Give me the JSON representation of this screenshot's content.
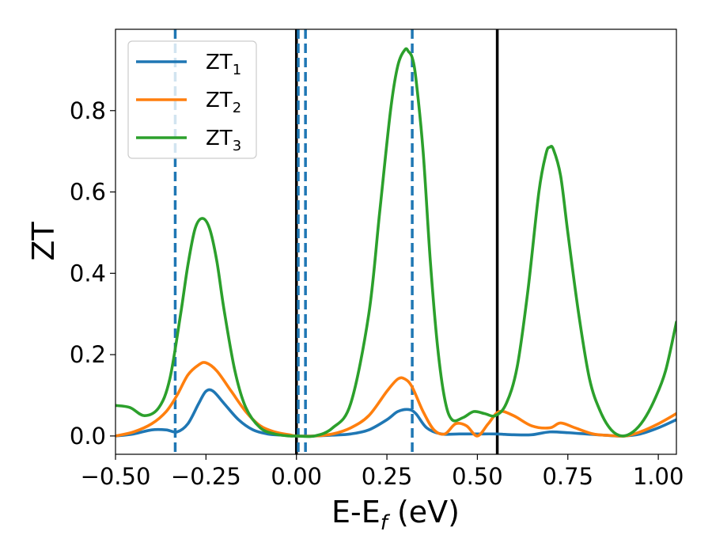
{
  "chart_data": {
    "type": "line",
    "xlabel": "E-E",
    "xlabel_sub": "f",
    "xlabel_unit": " (eV)",
    "ylabel": "ZT",
    "xlim": [
      -0.5,
      1.05
    ],
    "ylim": [
      -0.045,
      1.0
    ],
    "xticks": [
      -0.5,
      -0.25,
      0.0,
      0.25,
      0.5,
      0.75,
      1.0
    ],
    "xtick_labels": [
      "−0.50",
      "−0.25",
      "0.00",
      "0.25",
      "0.50",
      "0.75",
      "1.00"
    ],
    "yticks": [
      0.0,
      0.2,
      0.4,
      0.6,
      0.8
    ],
    "ytick_labels": [
      "0.0",
      "0.2",
      "0.4",
      "0.6",
      "0.8"
    ],
    "grid": false,
    "legend_position": "top-left",
    "vlines_solid": [
      0.0,
      0.555
    ],
    "vlines_dashed": [
      -0.335,
      0.005,
      0.025,
      0.32
    ],
    "vline_solid_color": "#000000",
    "vline_dashed_color": "#1f77b4",
    "series": [
      {
        "name": "ZT",
        "sub": "1",
        "color": "#1f77b4",
        "x": [
          -0.5,
          -0.45,
          -0.4,
          -0.36,
          -0.33,
          -0.3,
          -0.27,
          -0.25,
          -0.23,
          -0.2,
          -0.16,
          -0.12,
          -0.08,
          -0.04,
          0.0,
          0.05,
          0.1,
          0.15,
          0.2,
          0.25,
          0.28,
          0.31,
          0.33,
          0.36,
          0.4,
          0.45,
          0.5,
          0.55,
          0.6,
          0.65,
          0.7,
          0.75,
          0.8,
          0.85,
          0.9,
          0.95,
          1.0,
          1.05
        ],
        "y": [
          0.0,
          0.005,
          0.015,
          0.015,
          0.01,
          0.03,
          0.08,
          0.11,
          0.11,
          0.08,
          0.04,
          0.015,
          0.005,
          0.002,
          0.0,
          0.0,
          0.002,
          0.005,
          0.015,
          0.04,
          0.06,
          0.065,
          0.055,
          0.02,
          0.005,
          0.005,
          0.005,
          0.005,
          0.003,
          0.003,
          0.01,
          0.008,
          0.005,
          0.002,
          0.0,
          0.005,
          0.02,
          0.04
        ]
      },
      {
        "name": "ZT",
        "sub": "2",
        "color": "#ff7f0e",
        "x": [
          -0.5,
          -0.45,
          -0.4,
          -0.36,
          -0.33,
          -0.3,
          -0.27,
          -0.25,
          -0.22,
          -0.18,
          -0.14,
          -0.1,
          -0.06,
          -0.02,
          0.0,
          0.05,
          0.1,
          0.15,
          0.2,
          0.25,
          0.28,
          0.3,
          0.32,
          0.35,
          0.38,
          0.41,
          0.44,
          0.47,
          0.5,
          0.53,
          0.56,
          0.6,
          0.65,
          0.7,
          0.73,
          0.77,
          0.82,
          0.87,
          0.91,
          0.95,
          1.0,
          1.05
        ],
        "y": [
          0.0,
          0.01,
          0.03,
          0.06,
          0.1,
          0.15,
          0.175,
          0.18,
          0.16,
          0.11,
          0.06,
          0.025,
          0.01,
          0.003,
          0.0,
          0.0,
          0.005,
          0.02,
          0.05,
          0.11,
          0.14,
          0.14,
          0.12,
          0.06,
          0.015,
          0.005,
          0.03,
          0.025,
          0.0,
          0.03,
          0.06,
          0.05,
          0.025,
          0.02,
          0.032,
          0.02,
          0.005,
          0.001,
          0.0,
          0.01,
          0.03,
          0.055
        ]
      },
      {
        "name": "ZT",
        "sub": "3",
        "color": "#2ca02c",
        "x": [
          -0.5,
          -0.46,
          -0.42,
          -0.38,
          -0.35,
          -0.32,
          -0.3,
          -0.28,
          -0.26,
          -0.24,
          -0.22,
          -0.2,
          -0.17,
          -0.14,
          -0.1,
          -0.06,
          -0.02,
          0.0,
          0.05,
          0.1,
          0.15,
          0.2,
          0.23,
          0.26,
          0.28,
          0.3,
          0.31,
          0.32,
          0.33,
          0.35,
          0.37,
          0.39,
          0.41,
          0.43,
          0.46,
          0.49,
          0.52,
          0.55,
          0.58,
          0.61,
          0.64,
          0.67,
          0.69,
          0.7,
          0.71,
          0.73,
          0.75,
          0.78,
          0.81,
          0.84,
          0.87,
          0.9,
          0.93,
          0.96,
          0.99,
          1.02,
          1.05
        ],
        "y": [
          0.075,
          0.07,
          0.05,
          0.07,
          0.14,
          0.3,
          0.42,
          0.51,
          0.535,
          0.51,
          0.43,
          0.31,
          0.16,
          0.07,
          0.02,
          0.005,
          0.0,
          0.0,
          0.0,
          0.02,
          0.08,
          0.3,
          0.55,
          0.8,
          0.91,
          0.95,
          0.945,
          0.93,
          0.88,
          0.7,
          0.43,
          0.22,
          0.09,
          0.04,
          0.045,
          0.06,
          0.055,
          0.05,
          0.08,
          0.17,
          0.36,
          0.6,
          0.695,
          0.71,
          0.705,
          0.64,
          0.5,
          0.3,
          0.14,
          0.06,
          0.015,
          0.0,
          0.01,
          0.04,
          0.09,
          0.16,
          0.28
        ]
      }
    ]
  }
}
